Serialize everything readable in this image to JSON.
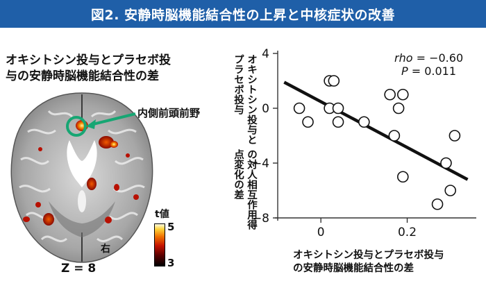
{
  "header": {
    "title": "図2. 安静時脳機能結合性の上昇と中核症状の改善"
  },
  "brain_panel": {
    "title_line1": "オキシトシン投与とプラセボ投",
    "title_line2": "与の安静時脳機能結合性の差",
    "roi_label": "内側前頭前野",
    "slice_label": "Z = 8",
    "side_label": "右",
    "colorbar": {
      "title": "t値",
      "max": "5",
      "min": "3"
    }
  },
  "chart_data": {
    "type": "scatter",
    "xlabel_line1": "オキシトシン投与とプラセボ投与",
    "xlabel_line2": "の安静時脳機能結合性の差",
    "ylabel_line1": "オキシトシン投与とプラセボ投与",
    "ylabel_line2": "の対人相互作用得点変化の差",
    "xlim": [
      -0.1,
      0.36
    ],
    "ylim": [
      -8,
      4
    ],
    "xticks": [
      0,
      0.2
    ],
    "xtick_labels": [
      "0",
      "0.2"
    ],
    "yticks": [
      4,
      0,
      -4,
      -8
    ],
    "ytick_labels": [
      "4",
      "0",
      "−4",
      "−8"
    ],
    "points": [
      {
        "x": -0.05,
        "y": 0
      },
      {
        "x": -0.03,
        "y": -1
      },
      {
        "x": 0.02,
        "y": 2
      },
      {
        "x": 0.03,
        "y": 2
      },
      {
        "x": 0.02,
        "y": 0
      },
      {
        "x": 0.04,
        "y": 0
      },
      {
        "x": 0.04,
        "y": -1
      },
      {
        "x": 0.1,
        "y": -1
      },
      {
        "x": 0.16,
        "y": 1
      },
      {
        "x": 0.19,
        "y": 1
      },
      {
        "x": 0.18,
        "y": 0
      },
      {
        "x": 0.17,
        "y": -2
      },
      {
        "x": 0.19,
        "y": -5
      },
      {
        "x": 0.31,
        "y": -2
      },
      {
        "x": 0.29,
        "y": -4
      },
      {
        "x": 0.3,
        "y": -6
      },
      {
        "x": 0.27,
        "y": -7
      }
    ],
    "fit_line": {
      "x": [
        -0.085,
        0.34
      ],
      "y": [
        1.9,
        -5.2
      ]
    },
    "rho_label": "rho",
    "rho_value": " = −0.60",
    "p_label": "P",
    "p_value": " = 0.011",
    "colors": {
      "line": "#111111",
      "marker_edge": "#111111",
      "marker_fill": "#ffffff"
    }
  },
  "colors": {
    "banner": "#1f5fa8",
    "roi_arrow": "#17a673"
  }
}
